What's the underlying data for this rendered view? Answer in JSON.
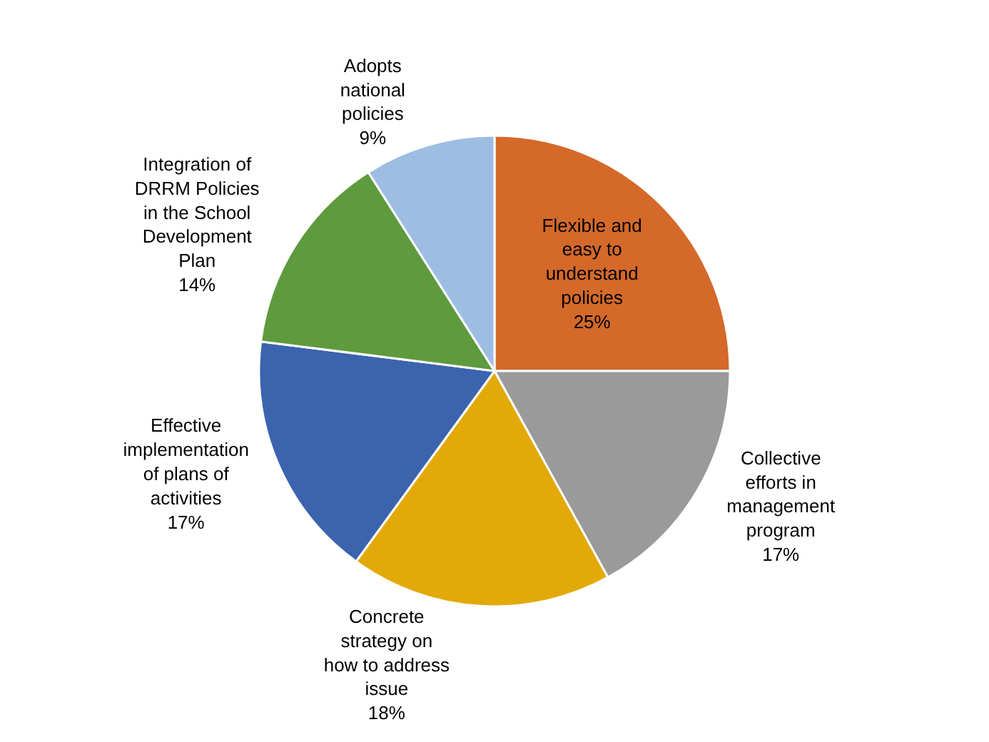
{
  "chart_data": {
    "type": "pie",
    "categories": [
      "Flexible and easy to understand policies",
      "Collective efforts in management program",
      "Concrete strategy on how to address issue",
      "Effective implementation of plans of activities",
      "Integration of DRRM Policies in the School Development Plan",
      "Adopts national policies"
    ],
    "values": [
      25,
      17,
      18,
      17,
      14,
      9
    ],
    "value_labels": [
      "25%",
      "17%",
      "18%",
      "17%",
      "14%",
      "9%"
    ],
    "colors": [
      "#d4692a",
      "#9a9a9a",
      "#e2a908",
      "#3c63ae",
      "#5e9a3e",
      "#9dbde3"
    ],
    "legend": false
  }
}
